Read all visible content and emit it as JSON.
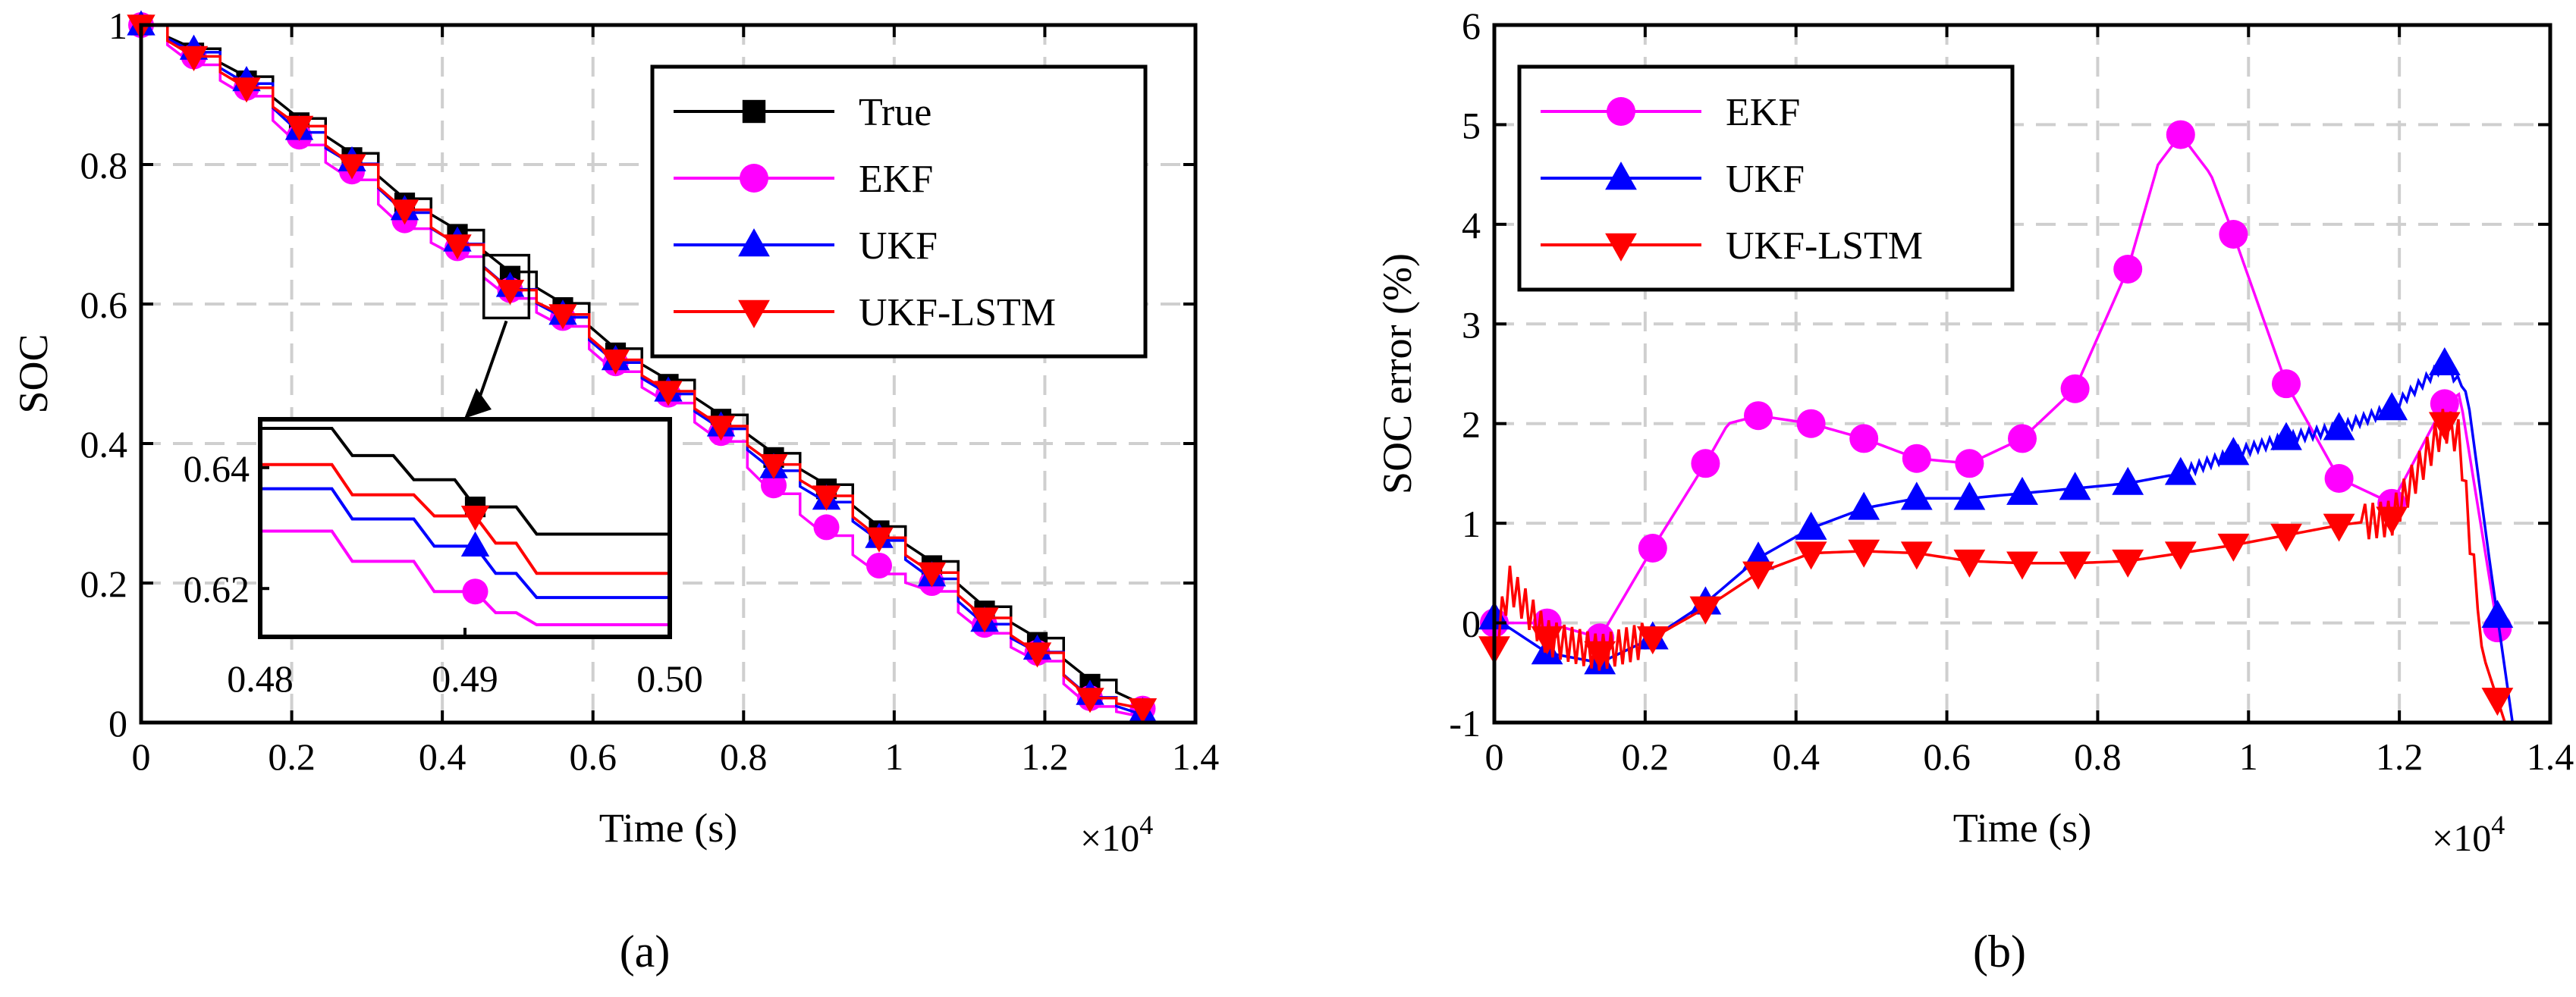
{
  "panel_labels": {
    "a": "(a)",
    "b": "(b)"
  },
  "colors": {
    "true": "#000000",
    "ekf": "#ff00ff",
    "ukf": "#0000ff",
    "ukf_lstm": "#ff0000",
    "grid": "#cfcfcf"
  },
  "chart_data": [
    {
      "id": "a",
      "type": "line",
      "title": "",
      "xlabel": "Time (s)",
      "ylabel": "SOC",
      "x_multiplier": "×10",
      "x_exponent": "4",
      "xlim": [
        0,
        1.4
      ],
      "ylim": [
        0,
        1
      ],
      "xticks": [
        0,
        0.2,
        0.4,
        0.6,
        0.8,
        1,
        1.2,
        1.4
      ],
      "xtick_labels": [
        "0",
        "0.2",
        "0.4",
        "0.6",
        "0.8",
        "1",
        "1.2",
        "1.4"
      ],
      "yticks": [
        0,
        0.2,
        0.4,
        0.6,
        0.8,
        1
      ],
      "ytick_labels": [
        "0",
        "0.2",
        "0.4",
        "0.6",
        "0.8",
        "1"
      ],
      "grid": true,
      "legend_position": "top-right",
      "series": [
        {
          "name": "True",
          "color_key": "true",
          "marker": "square",
          "offset": 0.006,
          "x": [
            0,
            0.07,
            0.14,
            0.21,
            0.28,
            0.35,
            0.42,
            0.49,
            0.56,
            0.63,
            0.7,
            0.77,
            0.84,
            0.91,
            0.98,
            1.05,
            1.12,
            1.19,
            1.26,
            1.33
          ],
          "values": [
            1.0,
            0.96,
            0.92,
            0.86,
            0.81,
            0.745,
            0.7,
            0.64,
            0.595,
            0.53,
            0.485,
            0.435,
            0.38,
            0.335,
            0.275,
            0.225,
            0.16,
            0.115,
            0.055,
            0.02
          ]
        },
        {
          "name": "EKF",
          "color_key": "ekf",
          "marker": "circle",
          "offset": -0.012,
          "x": [
            0,
            0.07,
            0.14,
            0.21,
            0.28,
            0.35,
            0.42,
            0.49,
            0.56,
            0.63,
            0.7,
            0.77,
            0.84,
            0.91,
            0.98,
            1.05,
            1.12,
            1.19,
            1.26,
            1.33
          ],
          "values": [
            1.0,
            0.955,
            0.91,
            0.84,
            0.79,
            0.72,
            0.68,
            0.62,
            0.58,
            0.515,
            0.47,
            0.415,
            0.34,
            0.28,
            0.225,
            0.2,
            0.14,
            0.1,
            0.035,
            0.02
          ]
        },
        {
          "name": "UKF",
          "color_key": "ukf",
          "marker": "triangle-up",
          "offset": -0.004,
          "x": [
            0,
            0.07,
            0.14,
            0.21,
            0.28,
            0.35,
            0.42,
            0.49,
            0.56,
            0.63,
            0.7,
            0.77,
            0.84,
            0.91,
            0.98,
            1.05,
            1.12,
            1.19,
            1.26,
            1.33
          ],
          "values": [
            1.0,
            0.965,
            0.92,
            0.85,
            0.805,
            0.735,
            0.69,
            0.625,
            0.585,
            0.52,
            0.475,
            0.425,
            0.365,
            0.32,
            0.265,
            0.21,
            0.145,
            0.105,
            0.04,
            0.015
          ]
        },
        {
          "name": "UKF-LSTM",
          "color_key": "ukf_lstm",
          "marker": "triangle-down",
          "offset": 0.0,
          "x": [
            0,
            0.07,
            0.14,
            0.21,
            0.28,
            0.35,
            0.42,
            0.49,
            0.56,
            0.63,
            0.7,
            0.77,
            0.84,
            0.91,
            0.98,
            1.05,
            1.12,
            1.19,
            1.26,
            1.33
          ],
          "values": [
            1.0,
            0.955,
            0.91,
            0.855,
            0.8,
            0.735,
            0.685,
            0.62,
            0.585,
            0.52,
            0.475,
            0.425,
            0.37,
            0.325,
            0.265,
            0.215,
            0.15,
            0.1,
            0.035,
            0.02
          ]
        }
      ],
      "inset": {
        "xlim": [
          0.48,
          0.5
        ],
        "ylim": [
          0.612,
          0.648
        ],
        "xticks": [
          0.48,
          0.49,
          0.5
        ],
        "xtick_labels": [
          "0.48",
          "0.49",
          "0.50"
        ],
        "yticks": [
          0.62,
          0.64
        ],
        "ytick_labels": [
          "0.62",
          "0.64"
        ],
        "series": [
          {
            "name": "True",
            "color_key": "true",
            "marker": "square",
            "marker_x": 0.4905,
            "x": [
              0.48,
              0.4835,
              0.4845,
              0.4865,
              0.4875,
              0.4895,
              0.4905,
              0.4925,
              0.4935,
              0.5
            ],
            "values": [
              0.6465,
              0.6465,
              0.642,
              0.642,
              0.638,
              0.638,
              0.6335,
              0.6335,
              0.629,
              0.629
            ]
          },
          {
            "name": "EKF",
            "color_key": "ekf",
            "marker": "circle",
            "marker_x": 0.4905,
            "x": [
              0.48,
              0.4835,
              0.4845,
              0.4875,
              0.4885,
              0.4905,
              0.4915,
              0.4925,
              0.4935,
              0.5
            ],
            "values": [
              0.6295,
              0.6295,
              0.6245,
              0.6245,
              0.6195,
              0.6195,
              0.616,
              0.616,
              0.614,
              0.614
            ]
          },
          {
            "name": "UKF",
            "color_key": "ukf",
            "marker": "triangle-up",
            "marker_x": 0.4905,
            "x": [
              0.48,
              0.4835,
              0.4845,
              0.4875,
              0.4885,
              0.4905,
              0.4915,
              0.4925,
              0.4935,
              0.5
            ],
            "values": [
              0.6365,
              0.6365,
              0.6315,
              0.6315,
              0.627,
              0.627,
              0.6225,
              0.6225,
              0.6185,
              0.6185
            ]
          },
          {
            "name": "UKF-LSTM",
            "color_key": "ukf_lstm",
            "marker": "triangle-down",
            "marker_x": 0.4905,
            "x": [
              0.48,
              0.4835,
              0.4845,
              0.4875,
              0.4885,
              0.4905,
              0.4915,
              0.4925,
              0.4935,
              0.5
            ],
            "values": [
              0.6405,
              0.6405,
              0.6355,
              0.6355,
              0.632,
              0.632,
              0.6275,
              0.6275,
              0.6225,
              0.6225
            ]
          }
        ]
      }
    },
    {
      "id": "b",
      "type": "line",
      "title": "",
      "xlabel": "Time (s)",
      "ylabel": "SOC error (%)",
      "x_multiplier": "×10",
      "x_exponent": "4",
      "xlim": [
        0,
        1.4
      ],
      "ylim": [
        -1,
        6
      ],
      "xticks": [
        0,
        0.2,
        0.4,
        0.6,
        0.8,
        1,
        1.2,
        1.4
      ],
      "xtick_labels": [
        "0",
        "0.2",
        "0.4",
        "0.6",
        "0.8",
        "1",
        "1.2",
        "1.4"
      ],
      "yticks": [
        -1,
        0,
        1,
        2,
        3,
        4,
        5,
        6
      ],
      "ytick_labels": [
        "-1",
        "0",
        "1",
        "2",
        "3",
        "4",
        "5",
        "6"
      ],
      "grid": true,
      "legend_position": "top-left",
      "series": [
        {
          "name": "EKF",
          "color_key": "ekf",
          "marker": "circle",
          "x": [
            0,
            0.07,
            0.14,
            0.21,
            0.28,
            0.31,
            0.35,
            0.42,
            0.49,
            0.56,
            0.63,
            0.7,
            0.77,
            0.84,
            0.88,
            0.91,
            0.95,
            0.98,
            1.05,
            1.12,
            1.19,
            1.26,
            1.28,
            1.33
          ],
          "values": [
            0.0,
            0.0,
            -0.15,
            0.75,
            1.6,
            2.0,
            2.08,
            2.0,
            1.85,
            1.65,
            1.6,
            1.85,
            2.35,
            3.55,
            4.6,
            4.9,
            4.5,
            3.9,
            2.4,
            1.45,
            1.2,
            2.2,
            2.3,
            -0.05
          ],
          "marker_x": [
            0,
            0.07,
            0.14,
            0.21,
            0.28,
            0.35,
            0.42,
            0.49,
            0.56,
            0.63,
            0.7,
            0.77,
            0.84,
            0.91,
            0.98,
            1.05,
            1.12,
            1.19,
            1.26,
            1.33
          ]
        },
        {
          "name": "UKF",
          "color_key": "ukf",
          "marker": "triangle-up",
          "x": [
            0,
            0.07,
            0.14,
            0.21,
            0.28,
            0.35,
            0.42,
            0.49,
            0.56,
            0.63,
            0.7,
            0.77,
            0.84,
            0.91,
            0.98,
            1.05,
            1.12,
            1.19,
            1.26,
            1.29,
            1.32,
            1.35
          ],
          "values": [
            0.05,
            -0.3,
            -0.4,
            -0.15,
            0.2,
            0.65,
            0.95,
            1.15,
            1.25,
            1.25,
            1.3,
            1.35,
            1.4,
            1.5,
            1.7,
            1.85,
            1.95,
            2.15,
            2.6,
            2.3,
            0.6,
            -1.0
          ],
          "marker_x": [
            0,
            0.07,
            0.14,
            0.21,
            0.28,
            0.35,
            0.42,
            0.49,
            0.56,
            0.63,
            0.7,
            0.77,
            0.84,
            0.91,
            0.98,
            1.05,
            1.12,
            1.19,
            1.26,
            1.33
          ]
        },
        {
          "name": "UKF-LSTM",
          "color_key": "ukf_lstm",
          "marker": "triangle-down",
          "x": [
            0,
            0.02,
            0.07,
            0.14,
            0.21,
            0.28,
            0.35,
            0.42,
            0.49,
            0.56,
            0.63,
            0.7,
            0.77,
            0.84,
            0.91,
            0.98,
            1.05,
            1.12,
            1.19,
            1.26,
            1.28,
            1.31,
            1.34
          ],
          "values": [
            -0.25,
            0.4,
            -0.15,
            -0.3,
            -0.15,
            0.15,
            0.5,
            0.7,
            0.72,
            0.7,
            0.62,
            0.6,
            0.6,
            0.62,
            0.7,
            0.78,
            0.88,
            0.98,
            1.05,
            2.0,
            1.85,
            -0.3,
            -1.0
          ],
          "marker_x": [
            0,
            0.07,
            0.14,
            0.21,
            0.28,
            0.35,
            0.42,
            0.49,
            0.56,
            0.63,
            0.7,
            0.77,
            0.84,
            0.91,
            0.98,
            1.05,
            1.12,
            1.19,
            1.26,
            1.33
          ]
        }
      ]
    }
  ]
}
